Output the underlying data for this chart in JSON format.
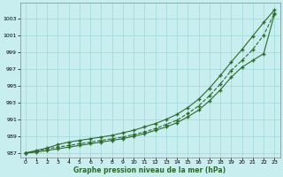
{
  "x": [
    0,
    1,
    2,
    3,
    4,
    5,
    6,
    7,
    8,
    9,
    10,
    11,
    12,
    13,
    14,
    15,
    16,
    17,
    18,
    19,
    20,
    21,
    22,
    23
  ],
  "line1": [
    987.0,
    987.3,
    987.6,
    988.0,
    988.3,
    988.5,
    988.7,
    988.9,
    989.1,
    989.4,
    989.7,
    990.1,
    990.5,
    991.0,
    991.6,
    992.4,
    993.4,
    994.7,
    996.2,
    997.8,
    999.3,
    1000.9,
    1002.5,
    1004.0
  ],
  "line2": [
    987.0,
    987.2,
    987.5,
    987.7,
    987.9,
    988.1,
    988.3,
    988.5,
    988.7,
    988.9,
    989.2,
    989.5,
    989.9,
    990.4,
    990.9,
    991.7,
    992.6,
    993.8,
    995.2,
    996.8,
    998.0,
    999.3,
    1001.0,
    1003.6
  ],
  "line3": [
    987.0,
    987.1,
    987.3,
    987.5,
    987.7,
    987.9,
    988.1,
    988.3,
    988.5,
    988.7,
    989.0,
    989.3,
    989.7,
    990.1,
    990.6,
    991.3,
    992.1,
    993.2,
    994.5,
    996.0,
    997.2,
    998.0,
    998.8,
    1003.5
  ],
  "line_color": "#2d6a2d",
  "bg_color": "#c8eef0",
  "grid_color": "#a0d8d8",
  "xlabel": "Graphe pression niveau de la mer (hPa)",
  "ylim": [
    986.5,
    1004.8
  ],
  "yticks": [
    987,
    989,
    991,
    993,
    995,
    997,
    999,
    1001,
    1003
  ],
  "xticks": [
    0,
    1,
    2,
    3,
    4,
    5,
    6,
    7,
    8,
    9,
    10,
    11,
    12,
    13,
    14,
    15,
    16,
    17,
    18,
    19,
    20,
    21,
    22,
    23
  ]
}
